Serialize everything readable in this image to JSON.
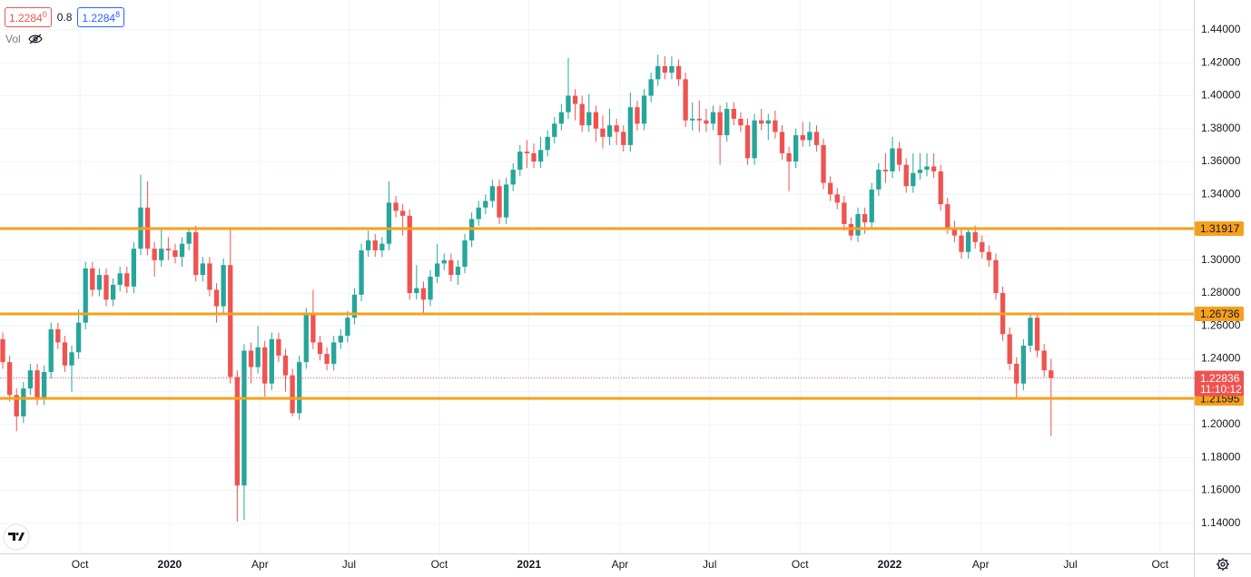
{
  "legend_bar": {
    "sell": "1.2284",
    "sell_frac": "0",
    "spread": "0.8",
    "buy": "1.2284",
    "buy_frac": "8",
    "volume_label": "Vol"
  },
  "chart_data": {
    "type": "candlestick",
    "up_color": "#26a69a",
    "down_color": "#ef5350",
    "grid": true,
    "open": [
      1.252,
      1.238,
      1.218,
      1.205,
      1.222,
      1.233,
      1.216,
      1.232,
      1.258,
      1.25,
      1.236,
      1.244,
      1.262,
      1.295,
      1.282,
      1.291,
      1.276,
      1.285,
      1.292,
      1.284,
      1.307,
      1.332,
      1.307,
      1.3,
      1.307,
      1.306,
      1.302,
      1.31,
      1.317,
      1.291,
      1.298,
      1.282,
      1.272,
      1.297,
      1.229,
      1.163,
      1.245,
      1.235,
      1.247,
      1.225,
      1.252,
      1.242,
      1.23,
      1.207,
      1.238,
      1.267,
      1.25,
      1.243,
      1.237,
      1.25,
      1.254,
      1.265,
      1.279,
      1.306,
      1.312,
      1.306,
      1.31,
      1.335,
      1.33,
      1.327,
      1.28,
      1.283,
      1.276,
      1.29,
      1.298,
      1.3,
      1.291,
      1.296,
      1.312,
      1.325,
      1.332,
      1.336,
      1.345,
      1.326,
      1.346,
      1.355,
      1.366,
      1.365,
      1.36,
      1.367,
      1.375,
      1.383,
      1.39,
      1.4,
      1.395,
      1.382,
      1.39,
      1.38,
      1.375,
      1.382,
      1.378,
      1.37,
      1.393,
      1.383,
      1.4,
      1.41,
      1.418,
      1.414,
      1.418,
      1.41,
      1.385,
      1.386,
      1.385,
      1.383,
      1.39,
      1.376,
      1.392,
      1.386,
      1.382,
      1.362,
      1.385,
      1.383,
      1.385,
      1.378,
      1.365,
      1.36,
      1.376,
      1.373,
      1.378,
      1.37,
      1.347,
      1.34,
      1.335,
      1.322,
      1.315,
      1.328,
      1.323,
      1.343,
      1.355,
      1.354,
      1.368,
      1.358,
      1.345,
      1.353,
      1.355,
      1.357,
      1.354,
      1.334,
      1.32,
      1.315,
      1.305,
      1.317,
      1.311,
      1.305,
      1.3,
      1.28,
      1.255,
      1.237,
      1.225,
      1.248,
      1.265,
      1.245,
      1.233
    ],
    "high": [
      1.256,
      1.242,
      1.222,
      1.226,
      1.237,
      1.237,
      1.236,
      1.262,
      1.262,
      1.254,
      1.248,
      1.27,
      1.299,
      1.299,
      1.295,
      1.295,
      1.289,
      1.296,
      1.296,
      1.311,
      1.352,
      1.348,
      1.311,
      1.32,
      1.314,
      1.31,
      1.314,
      1.32,
      1.321,
      1.302,
      1.302,
      1.286,
      1.301,
      1.32,
      1.233,
      1.249,
      1.25,
      1.26,
      1.251,
      1.256,
      1.256,
      1.246,
      1.234,
      1.242,
      1.271,
      1.282,
      1.254,
      1.247,
      1.254,
      1.258,
      1.269,
      1.283,
      1.31,
      1.318,
      1.316,
      1.314,
      1.348,
      1.339,
      1.334,
      1.331,
      1.297,
      1.287,
      1.294,
      1.31,
      1.304,
      1.304,
      1.3,
      1.316,
      1.329,
      1.336,
      1.34,
      1.349,
      1.349,
      1.35,
      1.359,
      1.37,
      1.373,
      1.371,
      1.375,
      1.379,
      1.387,
      1.395,
      1.423,
      1.404,
      1.4,
      1.401,
      1.394,
      1.388,
      1.392,
      1.386,
      1.382,
      1.402,
      1.397,
      1.404,
      1.414,
      1.425,
      1.424,
      1.424,
      1.422,
      1.414,
      1.396,
      1.397,
      1.392,
      1.394,
      1.394,
      1.396,
      1.396,
      1.39,
      1.386,
      1.389,
      1.392,
      1.389,
      1.391,
      1.382,
      1.369,
      1.38,
      1.384,
      1.384,
      1.382,
      1.374,
      1.351,
      1.344,
      1.339,
      1.326,
      1.332,
      1.332,
      1.347,
      1.359,
      1.365,
      1.375,
      1.372,
      1.362,
      1.365,
      1.365,
      1.365,
      1.365,
      1.358,
      1.338,
      1.324,
      1.319,
      1.32,
      1.321,
      1.315,
      1.309,
      1.304,
      1.284,
      1.259,
      1.241,
      1.252,
      1.267,
      1.267,
      1.249,
      1.24
    ],
    "low": [
      1.234,
      1.214,
      1.196,
      1.201,
      1.218,
      1.212,
      1.212,
      1.228,
      1.246,
      1.232,
      1.22,
      1.24,
      1.258,
      1.278,
      1.278,
      1.272,
      1.272,
      1.281,
      1.28,
      1.28,
      1.303,
      1.303,
      1.29,
      1.296,
      1.3,
      1.298,
      1.296,
      1.306,
      1.287,
      1.287,
      1.278,
      1.262,
      1.268,
      1.225,
      1.141,
      1.142,
      1.225,
      1.231,
      1.217,
      1.221,
      1.238,
      1.22,
      1.205,
      1.203,
      1.234,
      1.246,
      1.239,
      1.233,
      1.233,
      1.246,
      1.25,
      1.261,
      1.275,
      1.302,
      1.302,
      1.302,
      1.306,
      1.326,
      1.315,
      1.276,
      1.276,
      1.268,
      1.272,
      1.286,
      1.294,
      1.287,
      1.285,
      1.292,
      1.308,
      1.321,
      1.328,
      1.332,
      1.322,
      1.322,
      1.342,
      1.351,
      1.356,
      1.356,
      1.356,
      1.363,
      1.371,
      1.379,
      1.386,
      1.385,
      1.378,
      1.378,
      1.372,
      1.368,
      1.37,
      1.37,
      1.366,
      1.366,
      1.379,
      1.379,
      1.396,
      1.406,
      1.41,
      1.41,
      1.406,
      1.381,
      1.379,
      1.378,
      1.378,
      1.379,
      1.358,
      1.372,
      1.382,
      1.378,
      1.358,
      1.358,
      1.379,
      1.373,
      1.374,
      1.361,
      1.342,
      1.356,
      1.369,
      1.369,
      1.366,
      1.343,
      1.336,
      1.331,
      1.318,
      1.312,
      1.311,
      1.316,
      1.319,
      1.339,
      1.347,
      1.35,
      1.354,
      1.341,
      1.341,
      1.349,
      1.351,
      1.35,
      1.33,
      1.316,
      1.311,
      1.301,
      1.301,
      1.307,
      1.301,
      1.296,
      1.276,
      1.251,
      1.233,
      1.2155,
      1.221,
      1.244,
      1.241,
      1.229,
      1.193
    ],
    "close": [
      1.238,
      1.218,
      1.205,
      1.222,
      1.233,
      1.216,
      1.232,
      1.258,
      1.25,
      1.236,
      1.244,
      1.262,
      1.295,
      1.282,
      1.291,
      1.276,
      1.285,
      1.292,
      1.284,
      1.307,
      1.332,
      1.307,
      1.3,
      1.307,
      1.306,
      1.302,
      1.31,
      1.317,
      1.291,
      1.298,
      1.282,
      1.272,
      1.297,
      1.229,
      1.163,
      1.245,
      1.235,
      1.247,
      1.225,
      1.252,
      1.242,
      1.23,
      1.207,
      1.238,
      1.267,
      1.25,
      1.243,
      1.237,
      1.25,
      1.254,
      1.265,
      1.279,
      1.306,
      1.312,
      1.306,
      1.31,
      1.335,
      1.33,
      1.327,
      1.28,
      1.283,
      1.276,
      1.29,
      1.298,
      1.3,
      1.291,
      1.296,
      1.312,
      1.325,
      1.332,
      1.336,
      1.345,
      1.326,
      1.346,
      1.355,
      1.366,
      1.365,
      1.36,
      1.367,
      1.375,
      1.383,
      1.39,
      1.4,
      1.395,
      1.382,
      1.39,
      1.38,
      1.375,
      1.382,
      1.378,
      1.37,
      1.393,
      1.383,
      1.4,
      1.41,
      1.418,
      1.414,
      1.418,
      1.41,
      1.385,
      1.386,
      1.385,
      1.383,
      1.39,
      1.376,
      1.392,
      1.386,
      1.382,
      1.362,
      1.385,
      1.383,
      1.385,
      1.378,
      1.365,
      1.36,
      1.376,
      1.373,
      1.378,
      1.37,
      1.347,
      1.34,
      1.335,
      1.322,
      1.315,
      1.328,
      1.323,
      1.343,
      1.355,
      1.354,
      1.368,
      1.358,
      1.345,
      1.353,
      1.355,
      1.357,
      1.354,
      1.334,
      1.32,
      1.315,
      1.305,
      1.317,
      1.311,
      1.305,
      1.3,
      1.28,
      1.255,
      1.237,
      1.225,
      1.248,
      1.265,
      1.245,
      1.233,
      1.22836
    ],
    "xlim": [
      -0.4,
      172.7
    ],
    "xticks": [
      {
        "value": 11.2,
        "label": "Oct"
      },
      {
        "value": 24.2,
        "label": "2020"
      },
      {
        "value": 37.3,
        "label": "Apr"
      },
      {
        "value": 50.2,
        "label": "Jul"
      },
      {
        "value": 63.3,
        "label": "Oct"
      },
      {
        "value": 76.3,
        "label": "2021"
      },
      {
        "value": 89.5,
        "label": "Apr"
      },
      {
        "value": 102.5,
        "label": "Jul"
      },
      {
        "value": 115.6,
        "label": "Oct"
      },
      {
        "value": 128.6,
        "label": "2022"
      },
      {
        "value": 141.8,
        "label": "Apr"
      },
      {
        "value": 154.8,
        "label": "Jul"
      },
      {
        "value": 167.8,
        "label": "Oct"
      }
    ],
    "ylim": [
      1.1217,
      1.4582
    ],
    "yticks": [
      {
        "value": 1.14,
        "label": "1.14000"
      },
      {
        "value": 1.16,
        "label": "1.16000"
      },
      {
        "value": 1.18,
        "label": "1.18000"
      },
      {
        "value": 1.2,
        "label": "1.20000"
      },
      {
        "value": 1.22,
        "label": "1.22000"
      },
      {
        "value": 1.24,
        "label": "1.24000"
      },
      {
        "value": 1.26,
        "label": "1.26000"
      },
      {
        "value": 1.28,
        "label": "1.28000"
      },
      {
        "value": 1.3,
        "label": "1.30000"
      },
      {
        "value": 1.32,
        "label": "1.32000"
      },
      {
        "value": 1.34,
        "label": "1.34000"
      },
      {
        "value": 1.36,
        "label": "1.36000"
      },
      {
        "value": 1.38,
        "label": "1.38000"
      },
      {
        "value": 1.4,
        "label": "1.40000"
      },
      {
        "value": 1.42,
        "label": "1.42000"
      },
      {
        "value": 1.44,
        "label": "1.44000"
      }
    ],
    "hlines": {
      "color": "#f7a01d",
      "values": [
        1.31917,
        1.26736,
        1.21595
      ]
    },
    "last_price": {
      "value": 1.22836,
      "countdown": "11:10:12",
      "color": "#ef5350"
    }
  }
}
